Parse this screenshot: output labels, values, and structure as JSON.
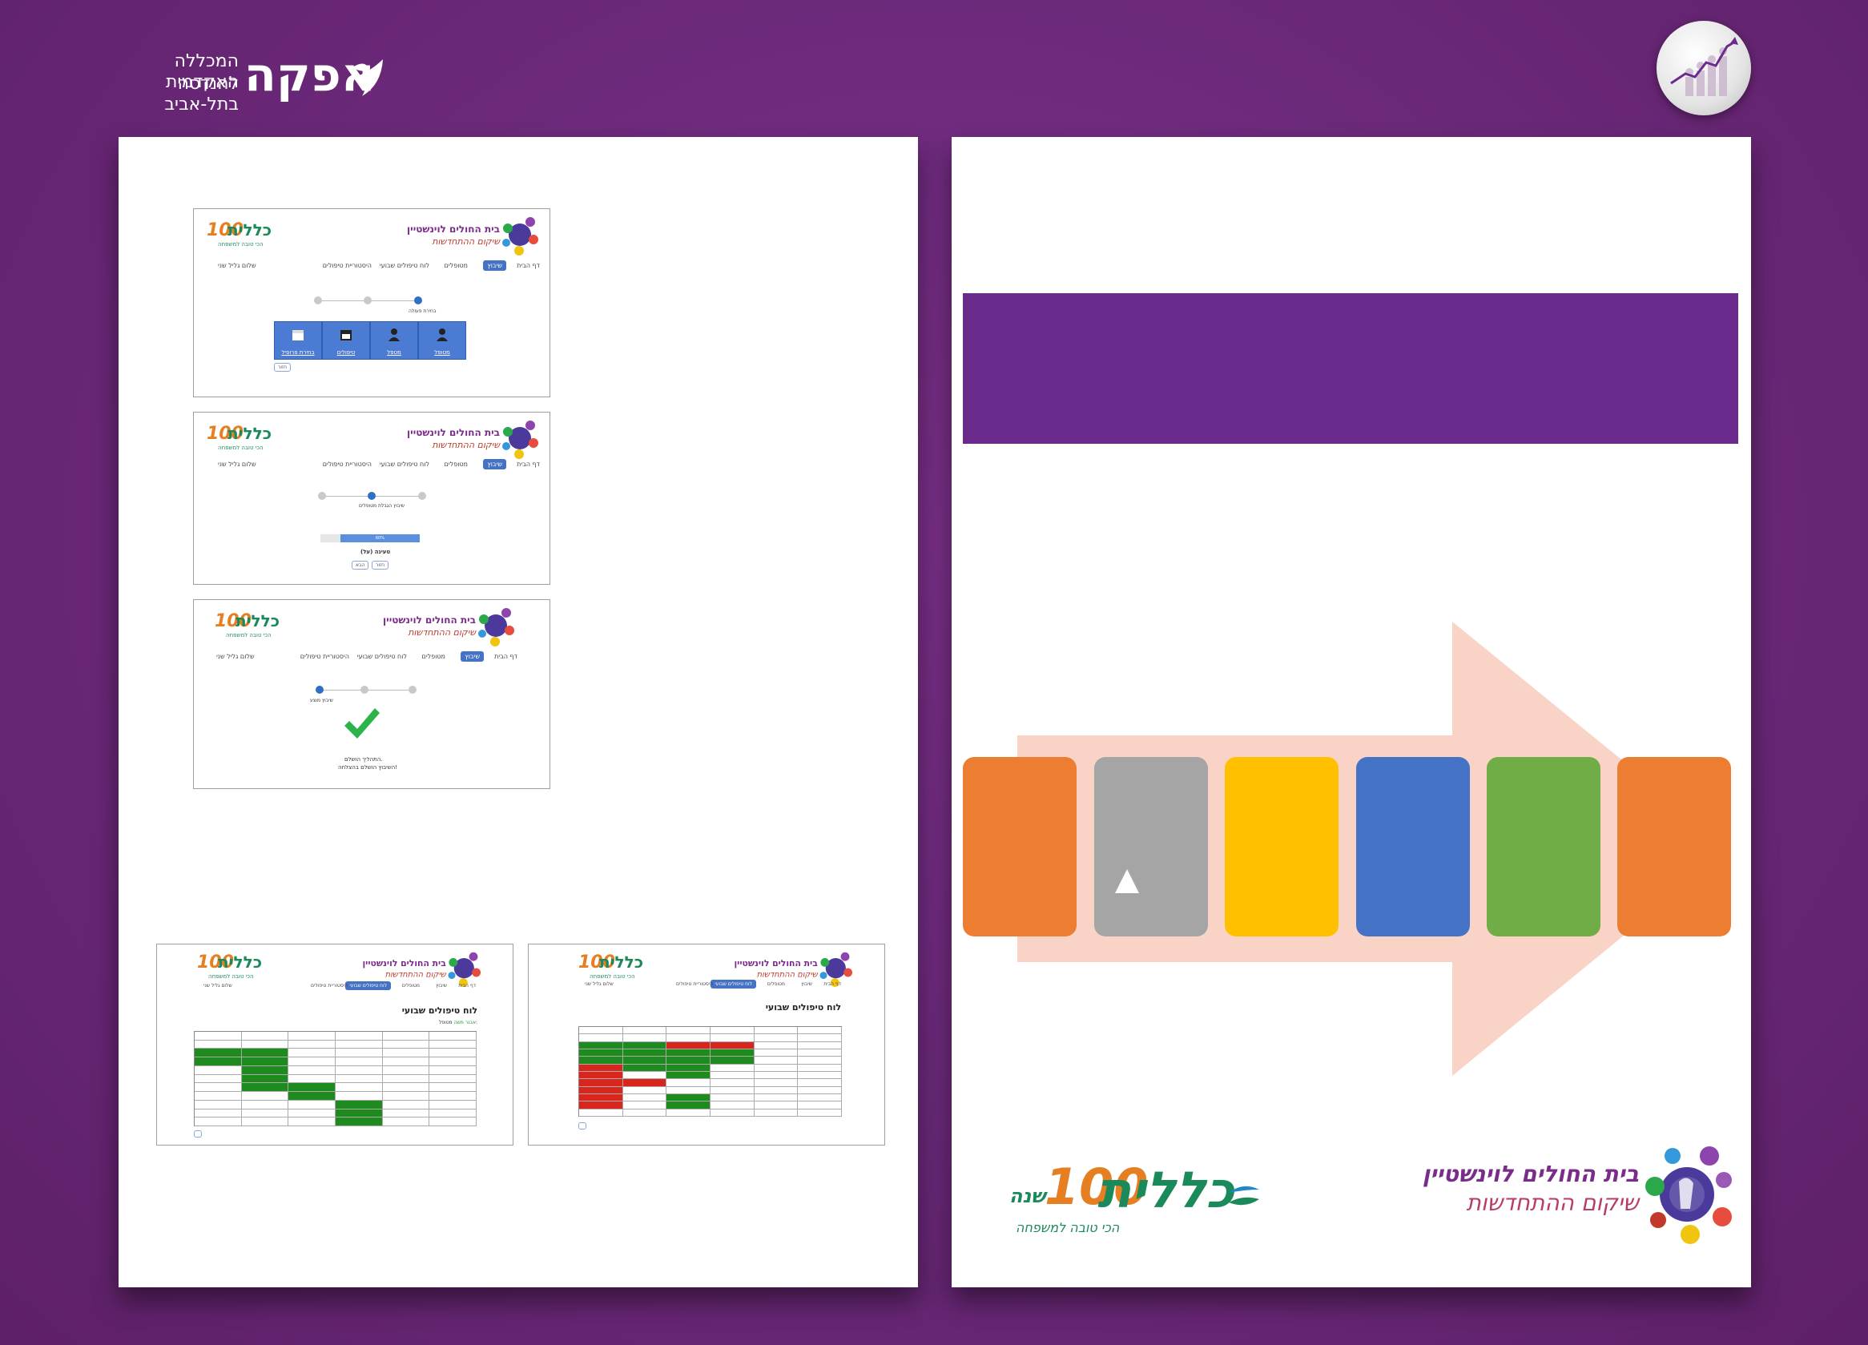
{
  "header": {
    "afeka_name": "אפקה",
    "afeka_sub1": "המכללה האקדמית",
    "afeka_sub2": "להנדסה בתל-אביב"
  },
  "hospital": {
    "line1": "בית החולים לוינשטיין",
    "line2": "שיקום ההתחדשות"
  },
  "clalit": {
    "word": "כללית",
    "hundred": "100",
    "shana": "שנה",
    "slogan": "הכי טובה למשפחה"
  },
  "nav": {
    "home": "דף הבית",
    "appointment": "שיבוץ",
    "therapists": "מטופלים",
    "weekly": "לוח טיפולים שבועי",
    "history": "היסטוריית טיפולים",
    "greeting": "שלום גליל שני"
  },
  "shot1": {
    "step_label": "בחירת פעולה",
    "tiles": [
      "מטופל",
      "מטפל",
      "טיפולים",
      "בחירת פרופיל"
    ],
    "back": "חזור"
  },
  "shot2": {
    "step_label": "שיבוץ הגבלת מטופלים",
    "progress_text": "60%",
    "caption": "טעינה (על)",
    "btn1": "הבא",
    "btn2": "חזור"
  },
  "shot3": {
    "step_label": "שיבוץ מוצע",
    "msg1": "התהליך הושלם.",
    "msg2": "השיבוץ הושלם בהצלחה!"
  },
  "calendar": {
    "title": "לוח טיפולים שבועי",
    "patient_label": "מטופל:",
    "patient_name": "אבנר משה"
  },
  "colors": {
    "background": "#6d2a7c",
    "banner": "#6b2b8c",
    "arrow": "#f8d3c6",
    "blocks": [
      "#ed7d31",
      "#a5a5a5",
      "#ffc000",
      "#4472c4",
      "#70ad47",
      "#ed7d31"
    ],
    "calendar_green": "#1e8b1e",
    "calendar_red": "#d9261c"
  }
}
